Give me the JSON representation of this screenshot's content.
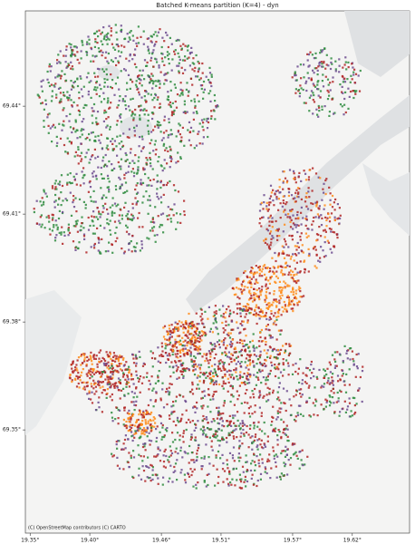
{
  "map": {
    "title": "Batched K-means partition (K=4) - dyn",
    "xlim": [
      19.346,
      19.668
    ],
    "ylim": [
      69.3213,
      69.4665
    ],
    "xticks": [
      {
        "value": 19.35,
        "label": "19.35°"
      },
      {
        "value": 19.4,
        "label": "19.40°"
      },
      {
        "value": 19.46,
        "label": "19.46°"
      },
      {
        "value": 19.51,
        "label": "19.51°"
      },
      {
        "value": 19.57,
        "label": "19.57°"
      },
      {
        "value": 19.62,
        "label": "19.62°"
      }
    ],
    "yticks": [
      {
        "value": 69.44,
        "label": "69.44°"
      },
      {
        "value": 69.41,
        "label": "69.41°"
      },
      {
        "value": 69.38,
        "label": "69.38°"
      },
      {
        "value": 69.35,
        "label": "69.35°"
      }
    ],
    "attribution": "(C) OpenStreetMap contributors (C) CARTO"
  }
}
